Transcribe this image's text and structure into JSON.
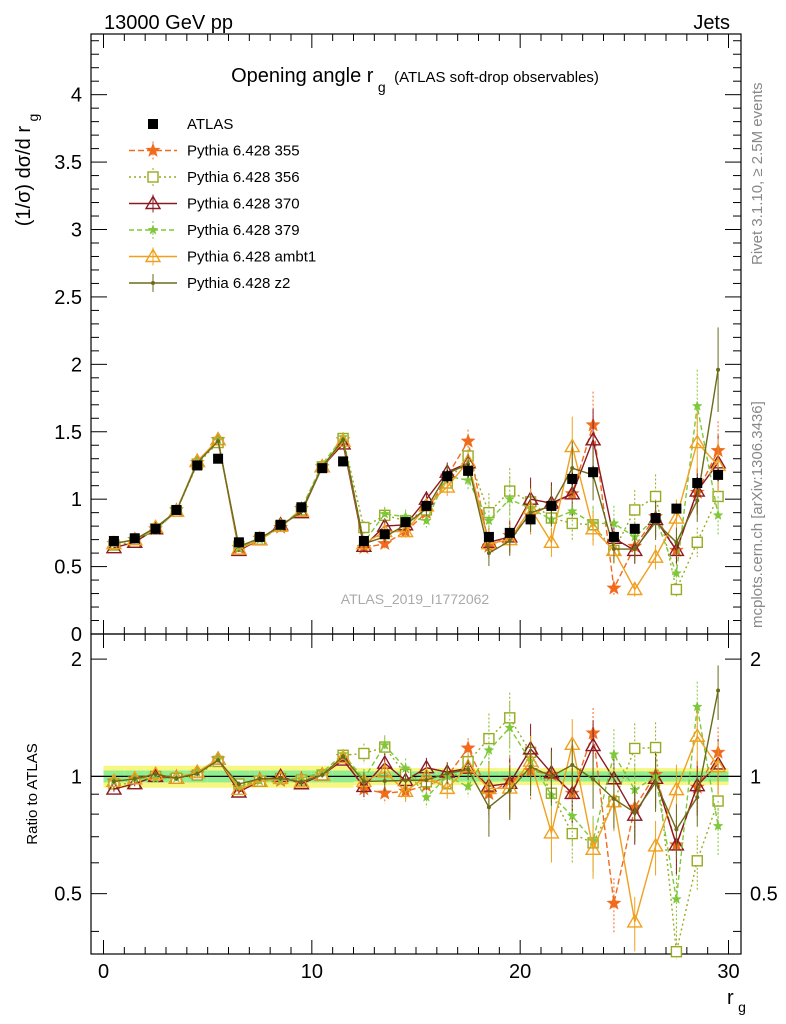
{
  "header": {
    "left": "13000 GeV pp",
    "right": "Jets"
  },
  "title": {
    "main": "Opening angle r",
    "sub": "g",
    "extra": "(ATLAS soft-drop observables)"
  },
  "side": {
    "rivet": "Rivet 3.1.10, ≥ 2.5M events",
    "mcplots": "mcplots.cern.ch [arXiv:1306.3436]"
  },
  "watermark": "ATLAS_2019_I1772062",
  "chart_data": {
    "type": "scatter",
    "xlabel": "r",
    "xlabel_sub": "g",
    "ylabel": "(1/σ) dσ/d r",
    "ylabel_sub": "g",
    "ratio_ylabel": "Ratio to ATLAS",
    "xlim": [
      -0.6,
      30.6
    ],
    "ylim": [
      0,
      4.45
    ],
    "ratio_ylim": [
      0.35,
      2.32
    ],
    "xticks": [
      "0",
      "10",
      "20",
      "30"
    ],
    "yticks": [
      "0.5",
      "1",
      "1.5",
      "2",
      "2.5",
      "3",
      "3.5",
      "4"
    ],
    "ratio_yticks": [
      "0.5",
      "1",
      "2"
    ],
    "legend_position": "top-left",
    "x": [
      0.5,
      1.5,
      2.5,
      3.5,
      4.5,
      5.5,
      6.5,
      7.5,
      8.5,
      9.5,
      10.5,
      11.5,
      12.5,
      13.5,
      14.5,
      15.5,
      16.5,
      17.5,
      18.5,
      19.5,
      20.5,
      21.5,
      22.5,
      23.5,
      24.5,
      25.5,
      26.5,
      27.5,
      28.5,
      29.5
    ],
    "data": {
      "name": "ATLAS",
      "values": [
        0.69,
        0.71,
        0.78,
        0.92,
        1.25,
        1.3,
        0.68,
        0.72,
        0.81,
        0.94,
        1.23,
        1.28,
        0.69,
        0.74,
        0.83,
        0.95,
        1.17,
        1.21,
        0.72,
        0.75,
        0.85,
        0.95,
        1.15,
        1.2,
        0.72,
        0.78,
        0.86,
        0.93,
        1.12,
        1.18
      ]
    },
    "series": [
      {
        "name": "Pythia 6.428 355",
        "color": "#f26b1d",
        "marker": "star",
        "dash": "6,3",
        "values": [
          0.67,
          0.7,
          0.78,
          0.92,
          1.27,
          1.44,
          0.64,
          0.71,
          0.79,
          0.93,
          1.24,
          1.44,
          0.64,
          0.67,
          0.76,
          0.9,
          1.17,
          1.43,
          0.65,
          0.73,
          0.88,
          0.96,
          1.04,
          1.55,
          0.34,
          0.65,
          0.87,
          0.62,
          1.05,
          1.36
        ]
      },
      {
        "name": "Pythia 6.428 356",
        "color": "#99aa22",
        "marker": "open-square",
        "dash": "2,3",
        "values": [
          0.66,
          0.68,
          0.78,
          0.91,
          1.26,
          1.42,
          0.65,
          0.7,
          0.8,
          0.92,
          1.24,
          1.45,
          0.79,
          0.88,
          0.84,
          0.92,
          1.12,
          1.32,
          0.9,
          1.06,
          0.98,
          0.86,
          0.82,
          0.81,
          0.62,
          0.92,
          1.02,
          0.33,
          0.68,
          1.02
        ]
      },
      {
        "name": "Pythia 6.428 370",
        "color": "#8b1a24",
        "marker": "open-triangle",
        "dash": "",
        "values": [
          0.64,
          0.68,
          0.78,
          0.91,
          1.28,
          1.44,
          0.62,
          0.7,
          0.81,
          0.9,
          1.24,
          1.41,
          0.65,
          0.8,
          0.81,
          1.0,
          1.2,
          1.27,
          0.68,
          0.72,
          1.0,
          0.97,
          1.04,
          1.44,
          0.71,
          0.62,
          0.85,
          0.62,
          1.06,
          1.27
        ]
      },
      {
        "name": "Pythia 6.428 379",
        "color": "#7ec83a",
        "marker": "star-small",
        "dash": "5,3",
        "values": [
          0.67,
          0.7,
          0.77,
          0.91,
          1.28,
          1.44,
          0.64,
          0.7,
          0.79,
          0.93,
          1.26,
          1.46,
          0.68,
          0.89,
          0.87,
          0.84,
          1.17,
          1.14,
          0.84,
          1.0,
          0.93,
          0.85,
          0.91,
          0.82,
          0.82,
          0.72,
          0.86,
          0.45,
          1.69,
          0.88
        ]
      },
      {
        "name": "Pythia 6.428 ambt1",
        "color": "#f0a01e",
        "marker": "open-triangle",
        "dash": "",
        "values": [
          0.67,
          0.7,
          0.79,
          0.91,
          1.28,
          1.44,
          0.63,
          0.7,
          0.8,
          0.91,
          1.24,
          1.43,
          0.67,
          0.76,
          0.76,
          0.95,
          1.09,
          1.28,
          0.67,
          0.7,
          0.93,
          0.68,
          1.39,
          0.78,
          0.62,
          0.33,
          0.57,
          0.86,
          1.42,
          1.25
        ]
      },
      {
        "name": "Pythia 6.428 z2",
        "color": "#6b6b1a",
        "marker": "dot",
        "dash": "",
        "values": [
          0.67,
          0.7,
          0.79,
          0.91,
          1.27,
          1.43,
          0.65,
          0.71,
          0.8,
          0.91,
          1.24,
          1.44,
          0.67,
          0.72,
          0.81,
          0.93,
          1.19,
          1.26,
          0.6,
          0.69,
          0.9,
          0.95,
          1.23,
          1.18,
          0.63,
          0.63,
          0.83,
          0.68,
          0.99,
          1.96
        ]
      }
    ]
  }
}
